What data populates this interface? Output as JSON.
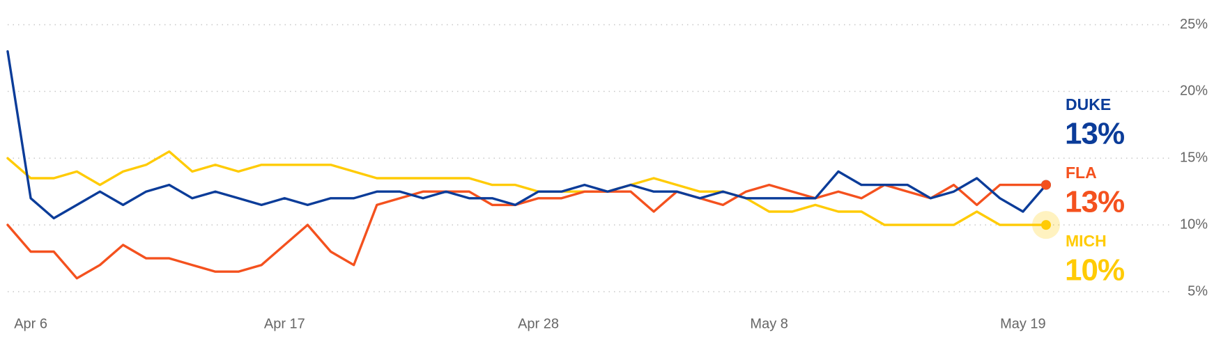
{
  "chart_data": {
    "type": "line",
    "x": [
      -1,
      0,
      1,
      2,
      3,
      4,
      5,
      6,
      7,
      8,
      9,
      10,
      11,
      12,
      13,
      14,
      15,
      16,
      17,
      18,
      19,
      20,
      21,
      22,
      23,
      24,
      25,
      26,
      27,
      28,
      29,
      30,
      31,
      32,
      33,
      34,
      35,
      36,
      37,
      38,
      39,
      40,
      41,
      42,
      43,
      44
    ],
    "xlim": [
      -1,
      44
    ],
    "xticks": [
      {
        "value": 0,
        "label": "Apr 6"
      },
      {
        "value": 11,
        "label": "Apr 17"
      },
      {
        "value": 22,
        "label": "Apr 28"
      },
      {
        "value": 32,
        "label": "May 8"
      },
      {
        "value": 43,
        "label": "May 19"
      }
    ],
    "ylim": [
      4,
      26
    ],
    "yticks": [
      {
        "value": 5,
        "label": "5%"
      },
      {
        "value": 10,
        "label": "10%"
      },
      {
        "value": 15,
        "label": "15%"
      },
      {
        "value": 20,
        "label": "20%"
      },
      {
        "value": 25,
        "label": "25%"
      }
    ],
    "grid": true,
    "series": [
      {
        "name": "DUKE",
        "color": "#0b3c99",
        "end_value_label": "13%",
        "values": [
          23,
          12,
          10.5,
          11.5,
          12.5,
          11.5,
          12.5,
          13,
          12,
          12.5,
          12,
          11.5,
          12,
          11.5,
          12,
          12,
          12.5,
          12.5,
          12,
          12.5,
          12,
          12,
          11.5,
          12.5,
          12.5,
          13,
          12.5,
          13,
          12.5,
          12.5,
          12,
          12.5,
          12,
          12,
          12,
          12,
          14,
          13,
          13,
          13,
          12,
          12.5,
          13.5,
          12,
          11,
          13
        ]
      },
      {
        "name": "FLA",
        "color": "#f4511e",
        "end_value_label": "13%",
        "values": [
          10,
          8,
          8,
          6,
          7,
          8.5,
          7.5,
          7.5,
          7,
          6.5,
          6.5,
          7,
          8.5,
          10,
          8,
          7,
          11.5,
          12,
          12.5,
          12.5,
          12.5,
          11.5,
          11.5,
          12,
          12,
          12.5,
          12.5,
          12.5,
          11,
          12.5,
          12,
          11.5,
          12.5,
          13,
          12.5,
          12,
          12.5,
          12,
          13,
          12.5,
          12,
          13,
          11.5,
          13,
          13,
          13
        ]
      },
      {
        "name": "MICH",
        "color": "#ffcb05",
        "end_value_label": "10%",
        "values": [
          15,
          13.5,
          13.5,
          14,
          13,
          14,
          14.5,
          15.5,
          14,
          14.5,
          14,
          14.5,
          14.5,
          14.5,
          14.5,
          14,
          13.5,
          13.5,
          13.5,
          13.5,
          13.5,
          13,
          13,
          12.5,
          12.5,
          12.5,
          12.5,
          13,
          13.5,
          13,
          12.5,
          12.5,
          12,
          11,
          11,
          11.5,
          11,
          11,
          10,
          10,
          10,
          10,
          11,
          10,
          10,
          10
        ]
      }
    ]
  }
}
